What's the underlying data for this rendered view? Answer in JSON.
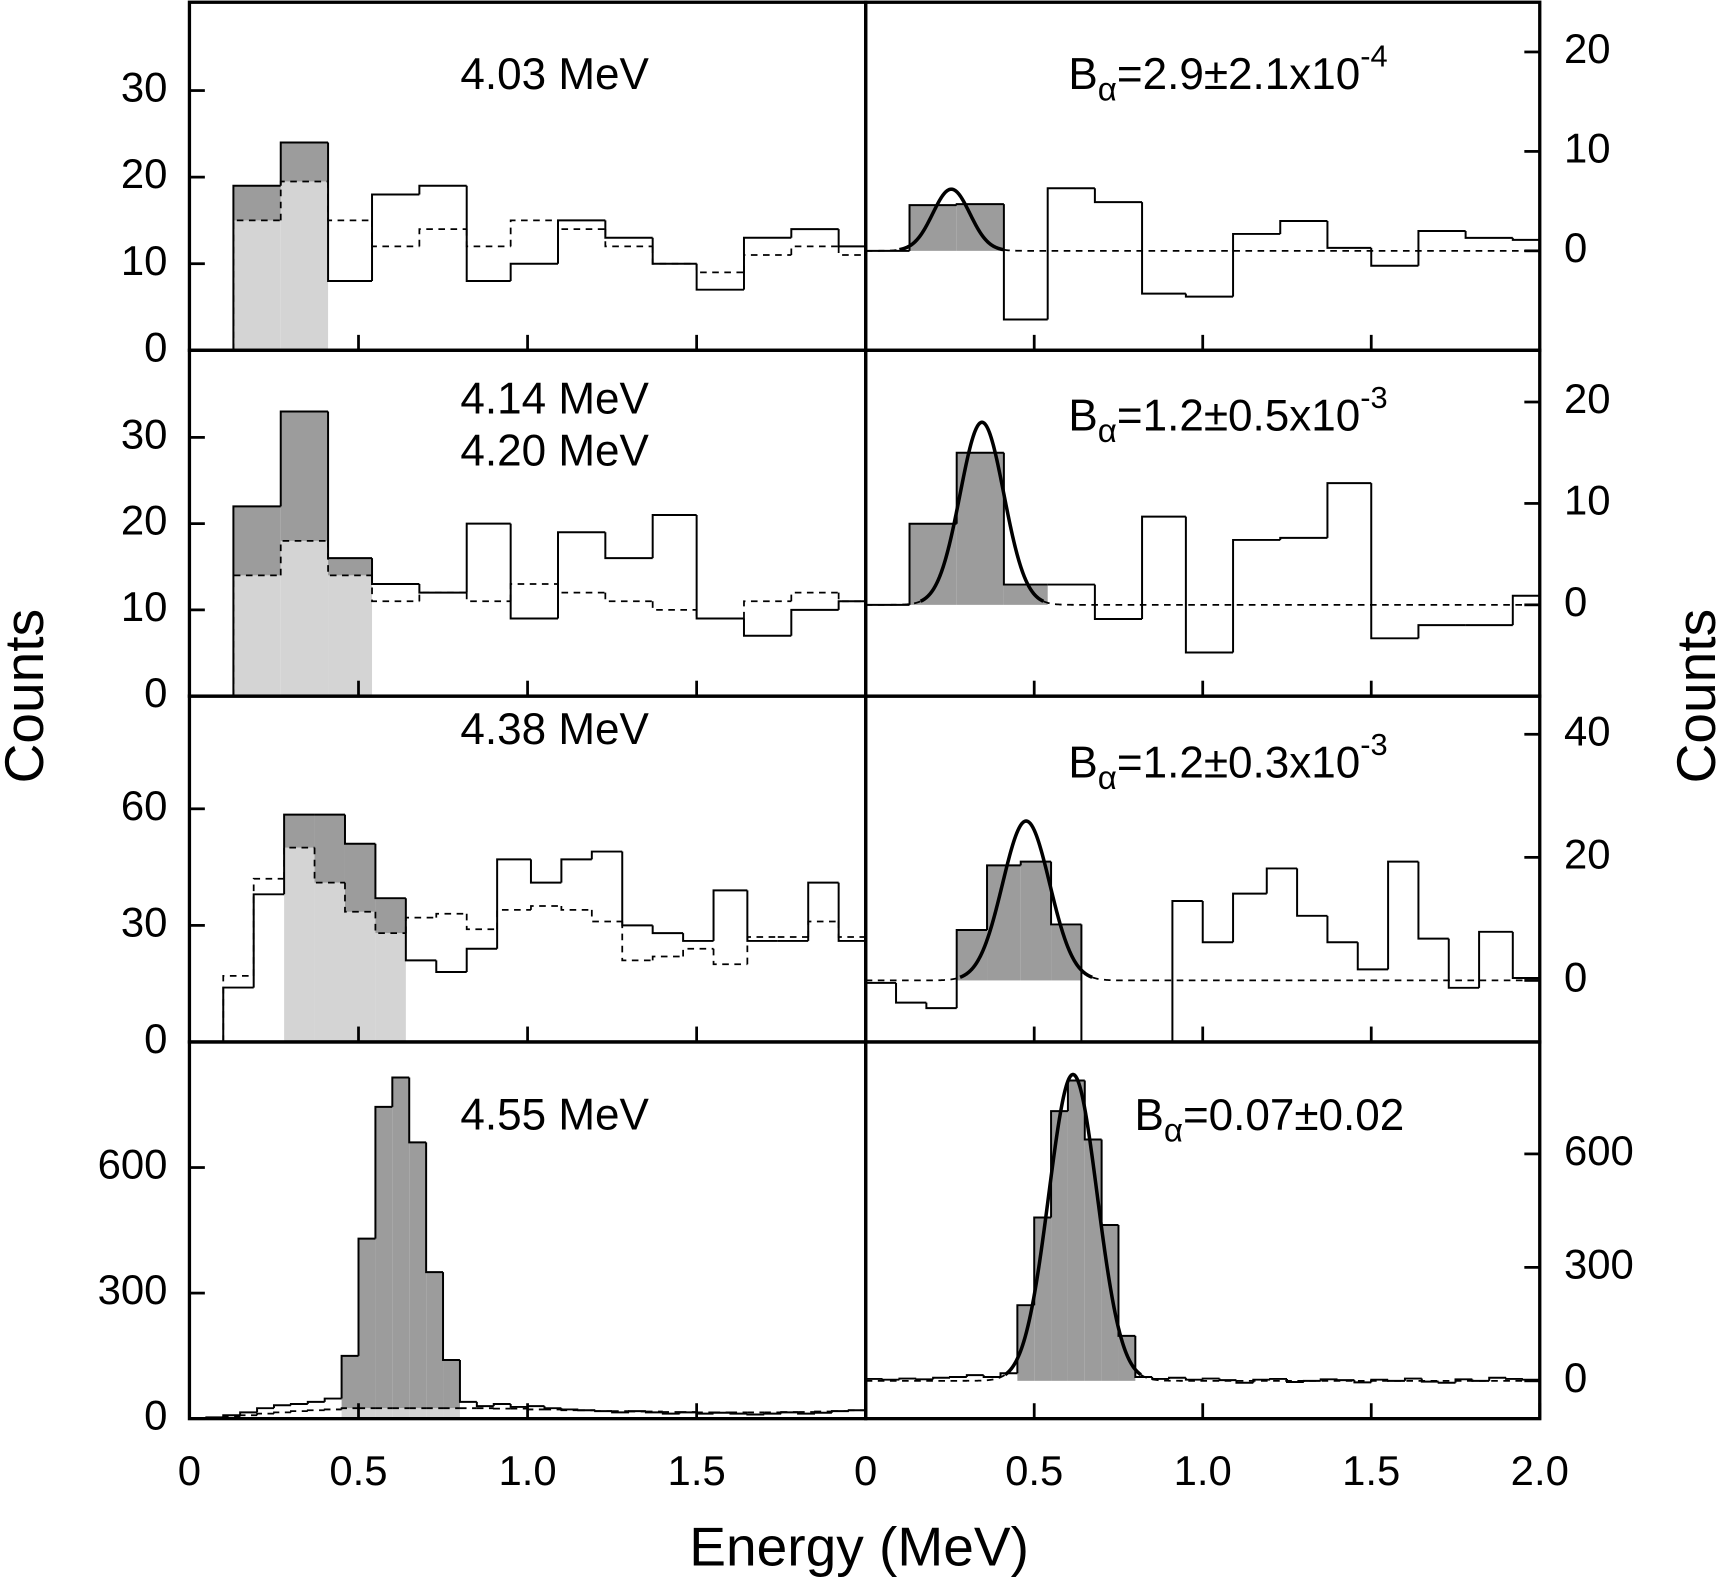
{
  "chart_data": {
    "type": "histogram",
    "xlabel": "Energy (MeV)",
    "ylabel": "Counts",
    "y2label": "Counts",
    "xlim": [
      0,
      2
    ],
    "panels": [
      {
        "labels": [
          "4.03 MeV"
        ],
        "bins": [
          0.13,
          0.27,
          0.41,
          0.54,
          0.68,
          0.82,
          0.95,
          1.09,
          1.23,
          1.37,
          1.5,
          1.64,
          1.78,
          1.92,
          2.0
        ],
        "counts": [
          19,
          24,
          8,
          18,
          19,
          8,
          10,
          15,
          13,
          10,
          7,
          13,
          14,
          12
        ],
        "background": [
          15,
          19.5,
          15,
          12,
          14,
          12,
          15,
          14,
          12,
          10,
          9,
          11,
          12,
          11
        ],
        "shade_bins": [
          0,
          1
        ],
        "ylim": [
          0,
          40.2
        ],
        "yticks": [
          0,
          10,
          20,
          30
        ],
        "xticks": [
          0.5,
          1,
          1.5
        ]
      },
      {
        "label": {
          "main": "B",
          "sub": "α",
          "rest": "=2.9±2.1x10",
          "sup": "-4"
        },
        "bins": [
          0,
          0.13,
          0.27,
          0.41,
          0.54,
          0.68,
          0.82,
          0.95,
          1.09,
          1.23,
          1.37,
          1.5,
          1.64,
          1.78,
          1.92,
          2.0
        ],
        "counts": [
          0,
          4.6,
          4.7,
          -6.9,
          6.3,
          4.9,
          -4.3,
          -4.6,
          1.7,
          3,
          0.3,
          -1.5,
          2,
          1.3,
          1.1
        ],
        "shade_bins": [
          1,
          2
        ],
        "fit": {
          "center": 0.254,
          "sigma": 0.055,
          "amplitude": 6.2
        },
        "ylim": [
          -10,
          25
        ],
        "yticks": [
          0,
          10,
          20
        ],
        "xticks": [
          0.5,
          1,
          1.5
        ]
      },
      {
        "labels": [
          "4.14 MeV",
          "4.20 MeV"
        ],
        "bins": [
          0.13,
          0.27,
          0.41,
          0.54,
          0.68,
          0.82,
          0.95,
          1.09,
          1.23,
          1.37,
          1.5,
          1.64,
          1.78,
          1.92,
          2.0
        ],
        "counts": [
          22,
          33,
          16,
          13,
          12,
          20,
          9,
          19,
          16,
          21,
          9,
          7,
          10,
          11
        ],
        "background": [
          14,
          18,
          14,
          11,
          12,
          11,
          13,
          12,
          11,
          10,
          9,
          11,
          12,
          11
        ],
        "shade_bins": [
          0,
          2
        ],
        "ylim": [
          0,
          40.1
        ],
        "yticks": [
          0,
          10,
          20,
          30
        ],
        "xticks": [
          0.5,
          1,
          1.5
        ]
      },
      {
        "label": {
          "main": "B",
          "sub": "α",
          "rest": "=1.2±0.5x10",
          "sup": "-3"
        },
        "bins": [
          0,
          0.13,
          0.27,
          0.41,
          0.54,
          0.68,
          0.82,
          0.95,
          1.09,
          1.23,
          1.37,
          1.5,
          1.64,
          1.78,
          1.92,
          2.0
        ],
        "counts": [
          0,
          8,
          15,
          2,
          2,
          -1.4,
          8.7,
          -4.7,
          6.4,
          6.6,
          12,
          -3.3,
          -2,
          -2,
          0.9
        ],
        "shade_bins": [
          1,
          3
        ],
        "fit": {
          "center": 0.345,
          "sigma": 0.065,
          "amplitude": 18
        },
        "ylim": [
          -9,
          25.1
        ],
        "yticks": [
          0,
          10,
          20
        ],
        "xticks": [
          0.5,
          1,
          1.5
        ]
      },
      {
        "labels": [
          "4.38 MeV"
        ],
        "bins": [
          0.1,
          0.19,
          0.28,
          0.37,
          0.46,
          0.55,
          0.64,
          0.73,
          0.82,
          0.91,
          1.01,
          1.1,
          1.19,
          1.28,
          1.37,
          1.46,
          1.55,
          1.65,
          1.74,
          1.83,
          1.92,
          2.0
        ],
        "counts": [
          14,
          38,
          58.5,
          58.5,
          51,
          37,
          21,
          18,
          24,
          47,
          41,
          47,
          49,
          30,
          28,
          26,
          39,
          26,
          26,
          41,
          26
        ],
        "background": [
          17,
          42,
          50,
          41,
          33.5,
          28,
          32,
          33,
          29,
          34,
          35,
          34,
          31,
          21,
          22,
          24,
          20,
          27,
          27,
          31,
          27
        ],
        "shade_bins": [
          2,
          5
        ],
        "ylim": [
          0,
          89
        ],
        "yticks": [
          0,
          30,
          60
        ],
        "xticks": [
          0.5,
          1,
          1.5
        ]
      },
      {
        "label": {
          "main": "B",
          "sub": "α",
          "rest": "=1.2±0.3x10",
          "sup": "-3"
        },
        "bins": [
          0,
          0.09,
          0.18,
          0.27,
          0.36,
          0.46,
          0.55,
          0.64,
          0.73,
          0.82,
          0.91,
          1,
          1.09,
          1.19,
          1.28,
          1.37,
          1.46,
          1.55,
          1.64,
          1.73,
          1.82,
          1.92,
          2.0
        ],
        "counts": [
          -0.4,
          -3.6,
          -4.5,
          8.2,
          18.7,
          19.3,
          9.1,
          -14,
          -14,
          -14,
          12.9,
          6.2,
          14.1,
          18.2,
          10.5,
          6.2,
          1.8,
          19.3,
          6.8,
          -1.2,
          7.9,
          0.4
        ],
        "shade_bins": [
          3,
          6
        ],
        "fit": {
          "center": 0.476,
          "sigma": 0.07,
          "amplitude": 25.9
        },
        "ylim": [
          -10,
          46.2
        ],
        "yticks": [
          0,
          20,
          40
        ],
        "xticks": [
          0.5,
          1,
          1.5
        ]
      },
      {
        "labels": [
          "4.55 MeV"
        ],
        "bins": [
          0,
          0.05,
          0.1,
          0.15,
          0.2,
          0.25,
          0.3,
          0.35,
          0.4,
          0.45,
          0.5,
          0.55,
          0.6,
          0.65,
          0.7,
          0.75,
          0.8,
          0.85,
          0.9,
          0.95,
          1,
          1.05,
          1.1,
          1.15,
          1.2,
          1.25,
          1.3,
          1.35,
          1.4,
          1.45,
          1.5,
          1.55,
          1.6,
          1.65,
          1.7,
          1.75,
          1.8,
          1.85,
          1.9,
          1.95,
          2
        ],
        "counts": [
          0,
          3,
          8,
          15,
          25,
          32,
          35,
          40,
          48,
          150,
          430,
          745,
          815,
          660,
          350,
          140,
          40,
          30,
          35,
          28,
          30,
          25,
          22,
          20,
          18,
          15,
          18,
          15,
          12,
          15,
          12,
          14,
          12,
          10,
          12,
          15,
          12,
          14,
          18,
          20
        ],
        "background": [
          0,
          2,
          5,
          8,
          12,
          15,
          18,
          20,
          22,
          25,
          25,
          25,
          25,
          25,
          25,
          25,
          25,
          25,
          24,
          24,
          22,
          22,
          20,
          20,
          18,
          18,
          17,
          17,
          16,
          16,
          15,
          15,
          15,
          15,
          15,
          16,
          16,
          17,
          18,
          20
        ],
        "shade_bins": [
          9,
          15
        ],
        "ylim": [
          0,
          900
        ],
        "yticks": [
          0,
          300,
          600
        ],
        "xticks": [
          0,
          0.5,
          {
            "value": 1,
            "label": "1.0"
          },
          1.5
        ]
      },
      {
        "label": {
          "main": "B",
          "sub": "α",
          "rest": "=0.07±0.02"
        },
        "bins": [
          0,
          0.05,
          0.1,
          0.15,
          0.2,
          0.25,
          0.3,
          0.35,
          0.4,
          0.45,
          0.5,
          0.55,
          0.6,
          0.65,
          0.7,
          0.75,
          0.8,
          0.85,
          0.9,
          0.95,
          1,
          1.05,
          1.1,
          1.15,
          1.2,
          1.25,
          1.3,
          1.35,
          1.4,
          1.45,
          1.5,
          1.55,
          1.6,
          1.65,
          1.7,
          1.75,
          1.8,
          1.85,
          1.9,
          1.95,
          2
        ],
        "counts": [
          5,
          3,
          6,
          4,
          8,
          10,
          15,
          10,
          20,
          200,
          432,
          713,
          794,
          638,
          412,
          119,
          10,
          5,
          8,
          3,
          6,
          2,
          -5,
          3,
          5,
          -3,
          0,
          4,
          2,
          -4,
          3,
          0,
          6,
          -2,
          -5,
          4,
          0,
          8,
          5,
          3
        ],
        "shade_bins": [
          9,
          15
        ],
        "fit": {
          "center": 0.615,
          "sigma": 0.072,
          "amplitude": 810
        },
        "ylim": [
          -100,
          896
        ],
        "yticks": [
          0,
          300,
          600
        ],
        "xticks": [
          0,
          0.5,
          {
            "value": 1,
            "label": "1.0"
          },
          1.5,
          {
            "value": 2,
            "label": "2.0"
          }
        ]
      }
    ]
  }
}
